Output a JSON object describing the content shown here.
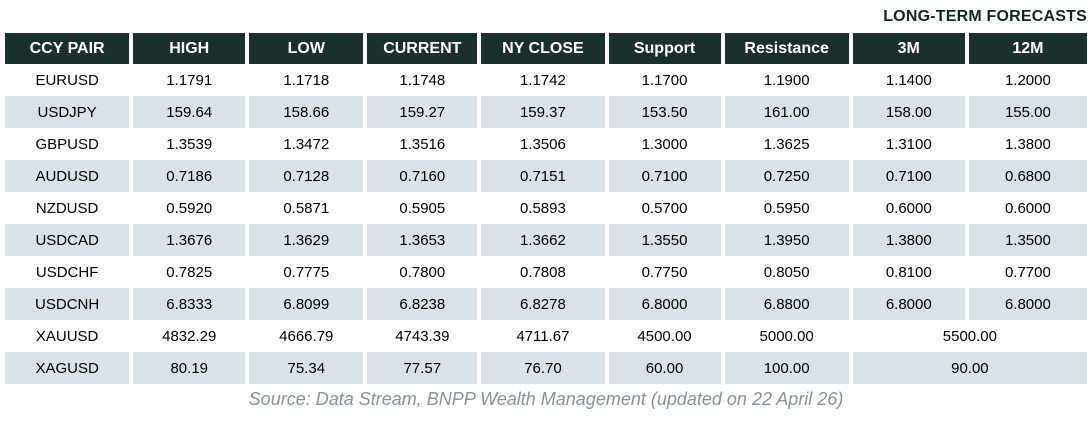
{
  "title": "LONG-TERM FORECASTS",
  "source": "Source: Data Stream, BNPP Wealth Management (updated on 22 April 26)",
  "colors": {
    "header_bg": "#1a302c",
    "row_alt_bg": "#d9e2e6",
    "title_color": "#14241f",
    "source_color": "#8a9299"
  },
  "table": {
    "columns": [
      "CCY PAIR",
      "HIGH",
      "LOW",
      "CURRENT",
      "NY CLOSE",
      "Support",
      "Resistance",
      "3M",
      "12M"
    ],
    "rows": [
      {
        "pair": "EURUSD",
        "values": [
          "1.1791",
          "1.1718",
          "1.1748",
          "1.1742",
          "1.1700",
          "1.1900",
          "1.1400",
          "1.2000"
        ]
      },
      {
        "pair": "USDJPY",
        "values": [
          "159.64",
          "158.66",
          "159.27",
          "159.37",
          "153.50",
          "161.00",
          "158.00",
          "155.00"
        ]
      },
      {
        "pair": "GBPUSD",
        "values": [
          "1.3539",
          "1.3472",
          "1.3516",
          "1.3506",
          "1.3000",
          "1.3625",
          "1.3100",
          "1.3800"
        ]
      },
      {
        "pair": "AUDUSD",
        "values": [
          "0.7186",
          "0.7128",
          "0.7160",
          "0.7151",
          "0.7100",
          "0.7250",
          "0.7100",
          "0.6800"
        ]
      },
      {
        "pair": "NZDUSD",
        "values": [
          "0.5920",
          "0.5871",
          "0.5905",
          "0.5893",
          "0.5700",
          "0.5950",
          "0.6000",
          "0.6000"
        ]
      },
      {
        "pair": "USDCAD",
        "values": [
          "1.3676",
          "1.3629",
          "1.3653",
          "1.3662",
          "1.3550",
          "1.3950",
          "1.3800",
          "1.3500"
        ]
      },
      {
        "pair": "USDCHF",
        "values": [
          "0.7825",
          "0.7775",
          "0.7800",
          "0.7808",
          "0.7750",
          "0.8050",
          "0.8100",
          "0.7700"
        ]
      },
      {
        "pair": "USDCNH",
        "values": [
          "6.8333",
          "6.8099",
          "6.8238",
          "6.8278",
          "6.8000",
          "6.8800",
          "6.8000",
          "6.8000"
        ]
      },
      {
        "pair": "XAUUSD",
        "values": [
          "4832.29",
          "4666.79",
          "4743.39",
          "4711.67",
          "4500.00",
          "5000.00"
        ],
        "merged_forecast": "5500.00"
      },
      {
        "pair": "XAGUSD",
        "values": [
          "80.19",
          "75.34",
          "77.57",
          "76.70",
          "60.00",
          "100.00"
        ],
        "merged_forecast": "90.00"
      }
    ]
  }
}
